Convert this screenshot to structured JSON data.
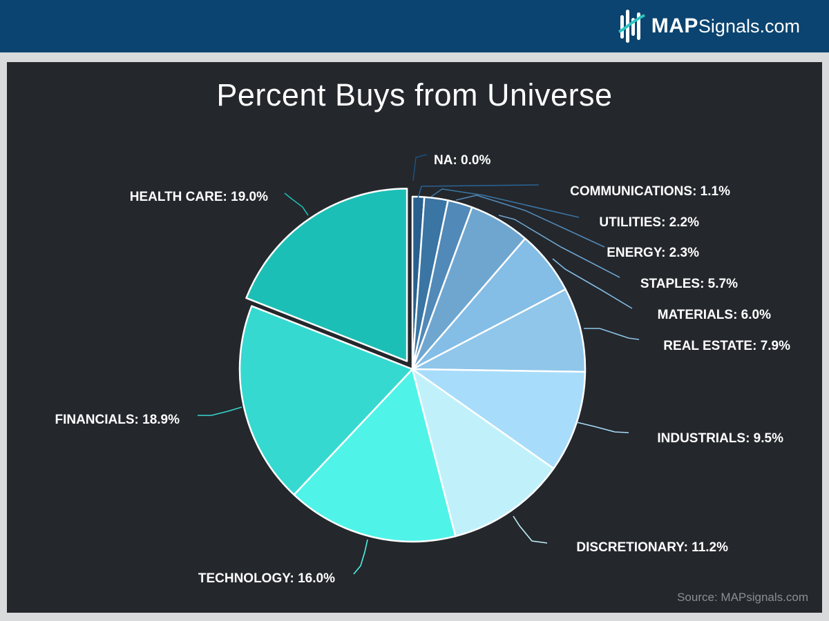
{
  "header": {
    "brand_bold": "MAP",
    "brand_rest": "Signals.com"
  },
  "footer": {
    "source": "Source: MAPsignals.com"
  },
  "chart_data": {
    "type": "pie",
    "title": "Percent Buys from Universe",
    "start_angle_deg": 0,
    "direction": "clockwise",
    "exploded_slice": "HEALTH CARE",
    "slices": [
      {
        "label": "NA",
        "value": 0.0,
        "display": "NA: 0.0%",
        "color": "#1f4f7a"
      },
      {
        "label": "COMMUNICATIONS",
        "value": 1.1,
        "display": "COMMUNICATIONS: 1.1%",
        "color": "#2a6090"
      },
      {
        "label": "UTILITIES",
        "value": 2.2,
        "display": "UTILITIES: 2.2%",
        "color": "#3a75a3"
      },
      {
        "label": "ENERGY",
        "value": 2.3,
        "display": "ENERGY: 2.3%",
        "color": "#5189b8"
      },
      {
        "label": "STAPLES",
        "value": 5.7,
        "display": "STAPLES: 5.7%",
        "color": "#6ea6d0"
      },
      {
        "label": "MATERIALS",
        "value": 6.0,
        "display": "MATERIALS: 6.0%",
        "color": "#84bde5"
      },
      {
        "label": "REAL ESTATE",
        "value": 7.9,
        "display": "REAL ESTATE: 7.9%",
        "color": "#8fc6ea"
      },
      {
        "label": "INDUSTRIALS",
        "value": 9.5,
        "display": "INDUSTRIALS: 9.5%",
        "color": "#a8dcfb"
      },
      {
        "label": "DISCRETIONARY",
        "value": 11.2,
        "display": "DISCRETIONARY: 11.2%",
        "color": "#c0f1fb"
      },
      {
        "label": "TECHNOLOGY",
        "value": 16.0,
        "display": "TECHNOLOGY: 16.0%",
        "color": "#4ff3e8"
      },
      {
        "label": "FINANCIALS",
        "value": 18.9,
        "display": "FINANCIALS: 18.9%",
        "color": "#35d9d0"
      },
      {
        "label": "HEALTH CARE",
        "value": 19.0,
        "display": "HEALTH CARE: 19.0%",
        "color": "#1cbfb6"
      }
    ]
  }
}
